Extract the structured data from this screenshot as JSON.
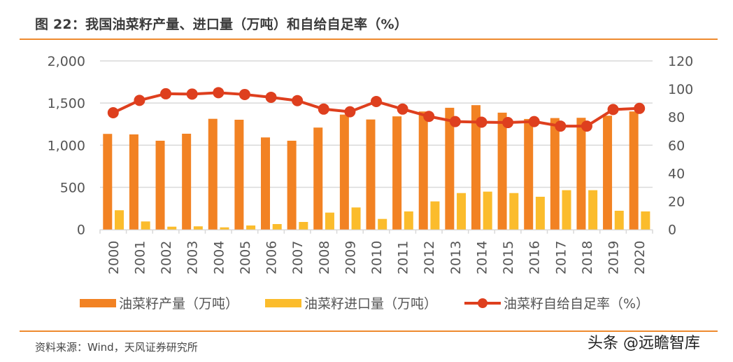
{
  "header": {
    "title": "图 22：我国油菜籽产量、进口量（万吨）和自给自足率（%）"
  },
  "footer": {
    "source": "资料来源：Wind，天风证券研究所",
    "watermark": "头条 @远瞻智库"
  },
  "colors": {
    "production": "#F28223",
    "imports": "#FBBC2C",
    "self_sufficiency": "#DE3F1E",
    "rule": "#EE8A2E",
    "grid": "#D9D9D9"
  },
  "chart_data": {
    "type": "bar",
    "title": "我国油菜籽产量、进口量（万吨）和自给自足率（%）",
    "categories": [
      "2000",
      "2001",
      "2002",
      "2003",
      "2004",
      "2005",
      "2006",
      "2007",
      "2008",
      "2009",
      "2010",
      "2011",
      "2012",
      "2013",
      "2014",
      "2015",
      "2016",
      "2017",
      "2018",
      "2019",
      "2020"
    ],
    "series": [
      {
        "name": "油菜籽产量（万吨）",
        "type": "bar",
        "axis": "left",
        "values": [
          1134,
          1128,
          1053,
          1136,
          1313,
          1302,
          1092,
          1053,
          1209,
          1363,
          1305,
          1342,
          1400,
          1444,
          1475,
          1386,
          1311,
          1322,
          1325,
          1350,
          1400
        ]
      },
      {
        "name": "油菜籽进口量（万吨）",
        "type": "bar",
        "axis": "left",
        "values": [
          228,
          95,
          33,
          37,
          25,
          47,
          64,
          89,
          200,
          261,
          125,
          214,
          333,
          432,
          449,
          432,
          388,
          466,
          466,
          222,
          214
        ]
      },
      {
        "name": "油菜籽自给自足率（%）",
        "type": "line",
        "axis": "right",
        "values": [
          83.1,
          91.9,
          96.6,
          96.4,
          97.4,
          96.1,
          94.1,
          91.7,
          85.7,
          83.8,
          91.1,
          85.7,
          80.5,
          76.8,
          76.4,
          76.1,
          76.8,
          73.6,
          73.6,
          85.4,
          86.2
        ]
      }
    ],
    "y_left": {
      "ylim": [
        0,
        2000
      ],
      "ticks": [
        0,
        500,
        1000,
        1500,
        2000
      ],
      "tick_labels": [
        "0",
        "500",
        "1,000",
        "1,500",
        "2,000"
      ]
    },
    "y_right": {
      "ylim": [
        0,
        120
      ],
      "ticks": [
        0,
        20,
        40,
        60,
        80,
        100,
        120
      ],
      "tick_labels": [
        "0",
        "20",
        "40",
        "60",
        "80",
        "100",
        "120"
      ]
    },
    "xlabel": "",
    "grid": true,
    "legend": {
      "placement": "bottom",
      "items": [
        "油菜籽产量（万吨）",
        "油菜籽进口量（万吨）",
        "油菜籽自给自足率（%）"
      ]
    }
  }
}
